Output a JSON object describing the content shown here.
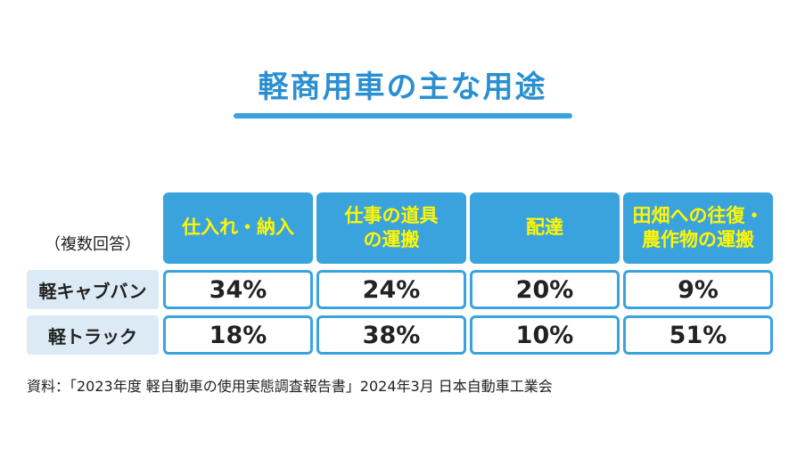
{
  "title": "軽商用車の主な用途",
  "chart_data": {
    "type": "table",
    "note": "（複数回答）",
    "columns": [
      "仕入れ・納入",
      "仕事の道具\nの運搬",
      "配達",
      "田畑への往復・\n農作物の運搬"
    ],
    "rows": [
      {
        "label": "軽キャブバン",
        "values": [
          "34%",
          "24%",
          "20%",
          "9%"
        ]
      },
      {
        "label": "軽トラック",
        "values": [
          "18%",
          "38%",
          "10%",
          "51%"
        ]
      }
    ]
  },
  "source": "資料：「2023年度 軽自動車の使用実態調査報告書」2024年3月 日本自動車工業会",
  "colors": {
    "accent": "#3aa3de",
    "title": "#2a8fd0",
    "header_text": "#fff600",
    "row_label_bg": "#dbeaf4"
  }
}
